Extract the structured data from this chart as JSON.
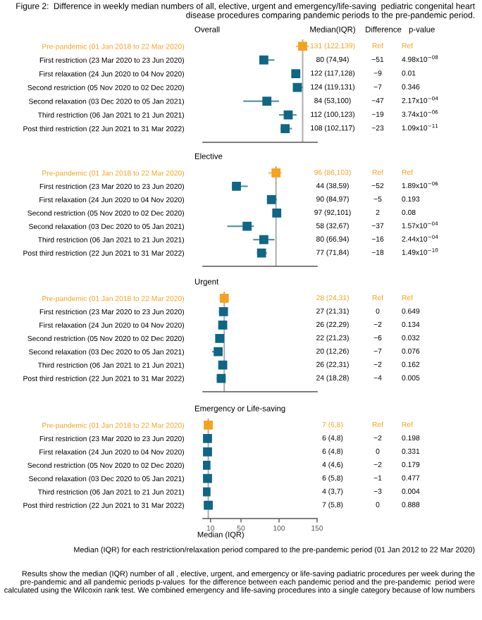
{
  "chart_data": [
    {
      "type": "scatter",
      "orientation": "horizontal",
      "title": "Figure 2:  Difference in weekly median numbers of all, elective, urgent and emergency/life-saving  pediatric congenital heart disease procedures comparing pandemic periods to the pre-pandemic period.",
      "subtitle": "Overall",
      "categories": [
        "Pre-pandemic (01 Jan 2018 to 22 Mar 2020)",
        "First restriction (23 Mar 2020 to 23 Jun 2020)",
        "First relaxation (24 Jun 2020 to 04 Nov 2020)",
        "Second restriction (05 Nov 2020 to 02 Dec 2020)",
        "Second relaxation (03 Dec 2020 to 05 Jan 2021)",
        "Third restriction (06 Jan 2021 to 21 Jun 2021)",
        "Post third restriction (22 Jun 2021 to 31 Mar 2022)"
      ],
      "values": [
        131,
        80,
        122,
        124,
        84,
        112,
        108
      ],
      "errors": [
        [
          122,
          139
        ],
        [
          74,
          94
        ],
        [
          117,
          128
        ],
        [
          119,
          131
        ],
        [
          53,
          100
        ],
        [
          100,
          123
        ],
        [
          102,
          117
        ]
      ],
      "color": "#0f6685",
      "colors": [
        "#f7a21b",
        "#0f6685",
        "#0f6685",
        "#0f6685",
        "#0f6685",
        "#0f6685",
        "#0f6685"
      ],
      "marker": "square",
      "xlim": [
        0,
        150
      ],
      "xticks": [
        10,
        50,
        100,
        150
      ],
      "tick_labels": "y",
      "ref_lines": [
        {
          "axis": "x",
          "value": 131,
          "color": "#aaaaaa"
        }
      ],
      "annotations": [
        "Median(IQR)",
        "Difference",
        "p-value",
        "131 (122,139)",
        "Ref",
        "Ref",
        "80 (74,94)",
        "−51",
        "4.98x10$^{−08}$",
        "122 (117,128)",
        "−9",
        "0.01",
        "124 (119,131)",
        "−7",
        "0.346",
        "84 (53,100)",
        "−47",
        "2.17x10$^{−04}$",
        "112 (100,123)",
        "−19",
        "3.74x10$^{−06}$",
        "108 (102,117)",
        "−23",
        "1.09x10$^{−11}$"
      ]
    },
    {
      "type": "scatter",
      "orientation": "horizontal",
      "subtitle": "Elective",
      "categories": [
        "Pre-pandemic (01 Jan 2018 to 22 Mar 2020)",
        "First restriction (23 Mar 2020 to 23 Jun 2020)",
        "First relaxation (24 Jun 2020 to 04 Nov 2020)",
        "Second restriction (05 Nov 2020 to 02 Dec 2020)",
        "Second relaxation (03 Dec 2020 to 05 Jan 2021)",
        "Third restriction (06 Jan 2021 to 21 Jun 2021)",
        "Post third restriction (22 Jun 2021 to 31 Mar 2022)"
      ],
      "values": [
        96,
        44,
        90,
        97,
        58,
        80,
        77
      ],
      "errors": [
        [
          86,
          103
        ],
        [
          38,
          59
        ],
        [
          84,
          97
        ],
        [
          92,
          101
        ],
        [
          32,
          67
        ],
        [
          66,
          94
        ],
        [
          71,
          84
        ]
      ],
      "color": "#0f6685",
      "colors": [
        "#f7a21b",
        "#0f6685",
        "#0f6685",
        "#0f6685",
        "#0f6685",
        "#0f6685",
        "#0f6685"
      ],
      "marker": "square",
      "xlim": [
        0,
        150
      ],
      "xticks": [
        10,
        50,
        100,
        150
      ],
      "tick_labels": "y",
      "ref_lines": [
        {
          "axis": "x",
          "value": 96,
          "color": "#aaaaaa"
        }
      ],
      "annotations": [
        "96 (86,103)",
        "Ref",
        "Ref",
        "44 (38,59)",
        "−52",
        "1.89x10$^{−06}$",
        "90 (84,97)",
        "−5",
        "0.193",
        "97 (92,101)",
        "2",
        "0.08",
        "58 (32,67)",
        "−37",
        "1.57x10$^{−04}$",
        "80 (66,94)",
        "−16",
        "2.44x10$^{−04}$",
        "77 (71,84)",
        "−18",
        "1.49x10$^{−10}$"
      ]
    },
    {
      "type": "scatter",
      "orientation": "horizontal",
      "subtitle": "Urgent",
      "categories": [
        "Pre-pandemic (01 Jan 2018 to 22 Mar 2020)",
        "First restriction (23 Mar 2020 to 23 Jun 2020)",
        "First relaxation (24 Jun 2020 to 04 Nov 2020)",
        "Second restriction (05 Nov 2020 to 02 Dec 2020)",
        "Second relaxation (03 Dec 2020 to 05 Jan 2021)",
        "Third restriction (06 Jan 2021 to 21 Jun 2021)",
        "Post third restriction (22 Jun 2021 to 31 Mar 2022)"
      ],
      "values": [
        28,
        27,
        26,
        22,
        20,
        26,
        24
      ],
      "errors": [
        [
          24,
          31
        ],
        [
          21,
          31
        ],
        [
          22,
          29
        ],
        [
          21,
          23
        ],
        [
          12,
          26
        ],
        [
          22,
          31
        ],
        [
          18,
          28
        ]
      ],
      "color": "#0f6685",
      "colors": [
        "#f7a21b",
        "#0f6685",
        "#0f6685",
        "#0f6685",
        "#0f6685",
        "#0f6685",
        "#0f6685"
      ],
      "marker": "square",
      "xlim": [
        0,
        150
      ],
      "xticks": [
        10,
        50,
        100,
        150
      ],
      "tick_labels": "y",
      "ref_lines": [
        {
          "axis": "x",
          "value": 28,
          "color": "#aaaaaa"
        }
      ],
      "annotations": [
        "28 (24,31)",
        "Ref",
        "Ref",
        "27 (21,31)",
        "0",
        "0.649",
        "26 (22,29)",
        "−2",
        "0.134",
        "22 (21,23)",
        "−6",
        "0.032",
        "20 (12,26)",
        "−7",
        "0.076",
        "26 (22,31)",
        "−2",
        "0.162",
        "24 (18,28)",
        "−4",
        "0.005"
      ]
    },
    {
      "type": "scatter",
      "orientation": "horizontal",
      "subtitle": "Emergency or Life-saving",
      "xlabel": "Median (IQR)",
      "categories": [
        "Pre-pandemic (01 Jan 2018 to 22 Mar 2020)",
        "First restriction (23 Mar 2020 to 23 Jun 2020)",
        "First relaxation (24 Jun 2020 to 04 Nov 2020)",
        "Second restriction (05 Nov 2020 to 02 Dec 2020)",
        "Second relaxation (03 Dec 2020 to 05 Jan 2021)",
        "Third restriction (06 Jan 2021 to 21 Jun 2021)",
        "Post third restriction (22 Jun 2021 to 31 Mar 2022)"
      ],
      "values": [
        7,
        6,
        6,
        4,
        6,
        4,
        7
      ],
      "errors": [
        [
          6,
          8
        ],
        [
          4,
          8
        ],
        [
          4,
          8
        ],
        [
          4,
          6
        ],
        [
          5,
          8
        ],
        [
          3,
          7
        ],
        [
          5,
          8
        ]
      ],
      "color": "#0f6685",
      "colors": [
        "#f7a21b",
        "#0f6685",
        "#0f6685",
        "#0f6685",
        "#0f6685",
        "#0f6685",
        "#0f6685"
      ],
      "marker": "square",
      "xlim": [
        0,
        150
      ],
      "xticks": [
        10,
        50,
        100,
        150
      ],
      "ref_lines": [
        {
          "axis": "x",
          "value": 7,
          "color": "#aaaaaa"
        }
      ],
      "annotations": [
        "7 (6,8)",
        "Ref",
        "Ref",
        "6 (4,8)",
        "−2",
        "0.198",
        "6 (4,8)",
        "0",
        "0.331",
        "4 (4,6)",
        "−2",
        "0.179",
        "6 (5,8)",
        "−1",
        "0.477",
        "4 (3,7)",
        "−3",
        "0.004",
        "7 (5,8)",
        "0",
        "0.888",
        "Median (IQR) for each restriction/relaxation period compared to the pre-pandemic period (01 Jan 2012 to 22 Mar 2020)",
        "Results show the median (IQR) number of all , elective, urgent, and emergency or life-saving padiatric procedures per week during the pre-pandemic and all pandemic periods p-values  for the difference between each pandemic period and the pre-pandemic  period were calculated using the Wilcoxin rank test. We combined emergency and life-saving procedures into a single category because of low numbers"
      ]
    }
  ]
}
